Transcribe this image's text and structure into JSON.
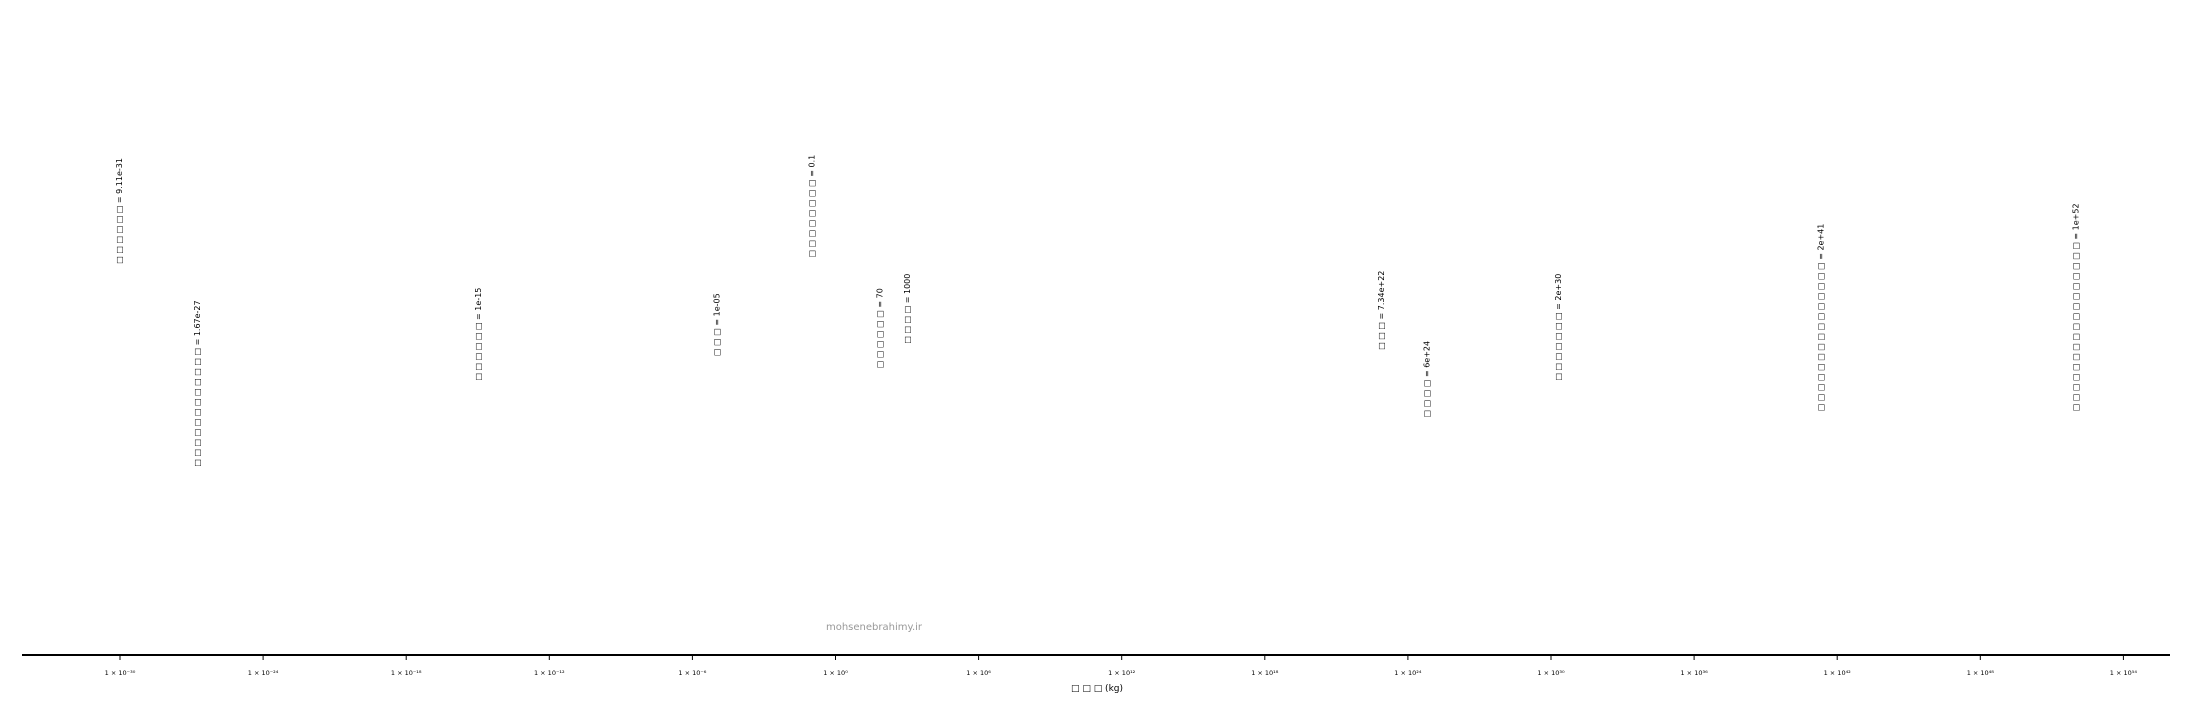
{
  "chart_data": {
    "type": "scatter",
    "title": "",
    "xlabel": "□ □ □ (kg)",
    "ylabel": "",
    "x_scale": "log10",
    "xlim_exponent": [
      -31.7,
      52.7
    ],
    "grid": false,
    "watermark": "mohsenebrahimy.ir",
    "ticks": [
      {
        "exponent": -30,
        "label": "1 × 10⁻³⁰"
      },
      {
        "exponent": -24,
        "label": "1 × 10⁻²⁴"
      },
      {
        "exponent": -18,
        "label": "1 × 10⁻¹⁸"
      },
      {
        "exponent": -12,
        "label": "1 × 10⁻¹²"
      },
      {
        "exponent": -6,
        "label": "1 × 10⁻⁶"
      },
      {
        "exponent": 0,
        "label": "1 × 10⁰"
      },
      {
        "exponent": 6,
        "label": "1 × 10⁶"
      },
      {
        "exponent": 12,
        "label": "1 × 10¹²"
      },
      {
        "exponent": 18,
        "label": "1 × 10¹⁸"
      },
      {
        "exponent": 24,
        "label": "1 × 10²⁴"
      },
      {
        "exponent": 30,
        "label": "1 × 10³⁰"
      },
      {
        "exponent": 36,
        "label": "1 × 10³⁶"
      },
      {
        "exponent": 42,
        "label": "1 × 10⁴²"
      },
      {
        "exponent": 48,
        "label": "1 × 10⁴⁸"
      },
      {
        "exponent": 54,
        "label": "1 × 10⁵⁴"
      }
    ],
    "points": [
      {
        "x": 9.11e-31,
        "label": "□ □ □ □ □ □ = 9.11e-31",
        "y": 0.62
      },
      {
        "x": 1.67e-27,
        "label": "□ □ □ □ □ □ □ □ □ □ □ □ = 1.67e-27",
        "y": 0.29
      },
      {
        "x": 1e-15,
        "label": "□ □ □ □ □ □ = 1e-15",
        "y": 0.43
      },
      {
        "x": 1e-05,
        "label": "□ □ □ = 1e-05",
        "y": 0.47
      },
      {
        "x": 0.1,
        "label": "□ □ □ □ □ □ □ □ = 0.1",
        "y": 0.63
      },
      {
        "x": 70,
        "label": "□ □ □ □ □ □ = 70",
        "y": 0.45
      },
      {
        "x": 1000,
        "label": "□ □ □ □ = 1000",
        "y": 0.49
      },
      {
        "x": 7.34e+22,
        "label": "□ □ □ = 7.34e+22",
        "y": 0.48
      },
      {
        "x": 6e+24,
        "label": "□ □ □ □ = 6e+24",
        "y": 0.37
      },
      {
        "x": 2e+30,
        "label": "□ □ □ □ □ □ □ = 2e+30",
        "y": 0.43
      },
      {
        "x": 2e+41,
        "label": "□ □ □ □ □ □ □ □ □ □ □ □ □ □ □ = 2e+41",
        "y": 0.38
      },
      {
        "x": 1e+52,
        "label": "□ □ □ □ □ □ □ □ □ □ □ □ □ □ □ □ □ = 1e+52",
        "y": 0.38
      }
    ]
  }
}
